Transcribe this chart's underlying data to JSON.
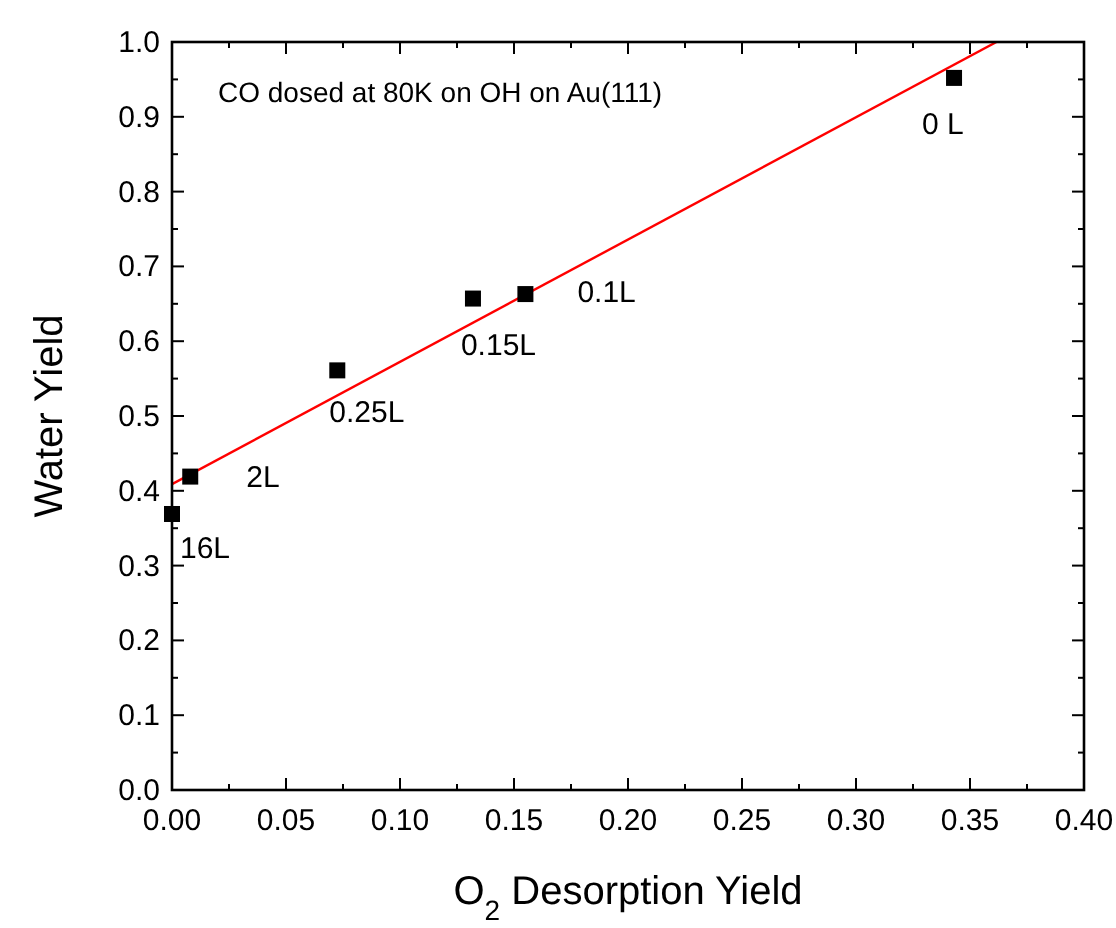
{
  "chart_data": {
    "type": "scatter",
    "xlabel": "O$_{2}$ Desorption Yield",
    "ylabel": "Water Yield",
    "x": [
      0.0,
      0.008,
      0.0725,
      0.132,
      0.155,
      0.343
    ],
    "series": [
      {
        "color": "#000000",
        "marker": "square",
        "values": [
          0.369,
          0.419,
          0.561,
          0.657,
          0.663,
          0.952
        ]
      },
      {
        "type": "line",
        "color": "#ff0000",
        "x": [
          0.0,
          0.3616
        ],
        "values": [
          0.409,
          1.0
        ]
      }
    ],
    "xlim": [
      0.0,
      0.4
    ],
    "ylim": [
      0.0,
      1.0
    ],
    "xticks": [
      {
        "value": 0,
        "label": "0.00"
      },
      {
        "value": 0.025,
        "label": null
      },
      {
        "value": 0.05,
        "label": "0.05"
      },
      {
        "value": 0.075,
        "label": null
      },
      {
        "value": 0.1,
        "label": "0.10"
      },
      {
        "value": 0.125,
        "label": null
      },
      {
        "value": 0.15,
        "label": "0.15"
      },
      {
        "value": 0.175,
        "label": null
      },
      {
        "value": 0.2,
        "label": "0.20"
      },
      {
        "value": 0.225,
        "label": null
      },
      {
        "value": 0.25,
        "label": "0.25"
      },
      {
        "value": 0.275,
        "label": null
      },
      {
        "value": 0.3,
        "label": "0.30"
      },
      {
        "value": 0.325,
        "label": null
      },
      {
        "value": 0.35,
        "label": "0.35"
      },
      {
        "value": 0.375,
        "label": null
      },
      {
        "value": 0.4,
        "label": "0.40"
      }
    ],
    "yticks": [
      {
        "value": 0,
        "label": "0.0"
      },
      {
        "value": 0.05,
        "label": null
      },
      {
        "value": 0.1,
        "label": "0.1"
      },
      {
        "value": 0.15,
        "label": null
      },
      {
        "value": 0.2,
        "label": "0.2"
      },
      {
        "value": 0.25,
        "label": null
      },
      {
        "value": 0.3,
        "label": "0.3"
      },
      {
        "value": 0.35,
        "label": null
      },
      {
        "value": 0.4,
        "label": "0.4"
      },
      {
        "value": 0.45,
        "label": null
      },
      {
        "value": 0.5,
        "label": "0.5"
      },
      {
        "value": 0.55,
        "label": null
      },
      {
        "value": 0.6,
        "label": "0.6"
      },
      {
        "value": 0.65,
        "label": null
      },
      {
        "value": 0.7,
        "label": "0.7"
      },
      {
        "value": 0.75,
        "label": null
      },
      {
        "value": 0.8,
        "label": "0.8"
      },
      {
        "value": 0.85,
        "label": null
      },
      {
        "value": 0.9,
        "label": "0.9"
      },
      {
        "value": 0.95,
        "label": null
      },
      {
        "value": 1.0,
        "label": "1.0"
      }
    ],
    "grid": false,
    "annotations": [
      "CO dosed at 80K on OH on Au(111)",
      {
        "text": "16L",
        "x": 0.0,
        "y": 0.369
      },
      {
        "text": "2L",
        "x": 0.008,
        "y": 0.419
      },
      {
        "text": "0.25L",
        "x": 0.0725,
        "y": 0.561
      },
      {
        "text": "0.15L",
        "x": 0.132,
        "y": 0.657
      },
      {
        "text": "0.1L",
        "x": 0.155,
        "y": 0.663
      },
      {
        "text": "0 L",
        "x": 0.343,
        "y": 0.952
      }
    ]
  }
}
